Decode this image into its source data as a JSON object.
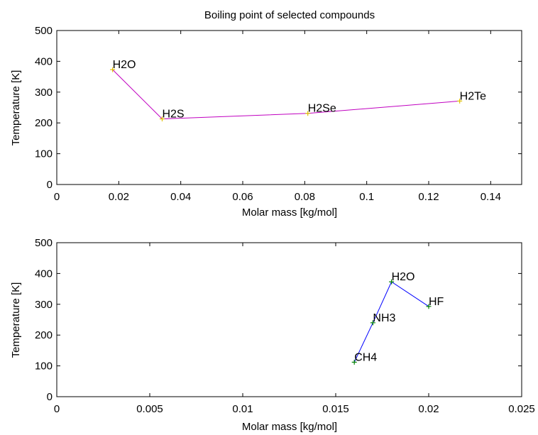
{
  "figure_title": "Boiling point of selected compounds",
  "chart_data": [
    {
      "type": "line",
      "title": "Boiling point of selected compounds",
      "xlabel": "Molar mass [kg/mol]",
      "ylabel": "Temperature [K]",
      "xlim": [
        0,
        0.15
      ],
      "ylim": [
        0,
        500
      ],
      "xticks": [
        0,
        0.02,
        0.04,
        0.06,
        0.08,
        0.1,
        0.12,
        0.14
      ],
      "xtick_labels": [
        "0",
        "0.02",
        "0.04",
        "0.06",
        "0.08",
        "0.1",
        "0.12",
        "0.14"
      ],
      "yticks": [
        0,
        100,
        200,
        300,
        400,
        500
      ],
      "ytick_labels": [
        "0",
        "100",
        "200",
        "300",
        "400",
        "500"
      ],
      "grid": false,
      "line_color": "#c000c0",
      "marker": "+",
      "marker_color": "#e0c000",
      "points": [
        {
          "label": "H2O",
          "x": 0.018,
          "y": 373
        },
        {
          "label": "H2S",
          "x": 0.034,
          "y": 213
        },
        {
          "label": "H2Se",
          "x": 0.081,
          "y": 231
        },
        {
          "label": "H2Te",
          "x": 0.13,
          "y": 271
        }
      ]
    },
    {
      "type": "line",
      "title": "",
      "xlabel": "Molar mass [kg/mol]",
      "ylabel": "Temperature [K]",
      "xlim": [
        0,
        0.025
      ],
      "ylim": [
        0,
        500
      ],
      "xticks": [
        0,
        0.005,
        0.01,
        0.015,
        0.02,
        0.025
      ],
      "xtick_labels": [
        "0",
        "0.005",
        "0.01",
        "0.015",
        "0.02",
        "0.025"
      ],
      "yticks": [
        0,
        100,
        200,
        300,
        400,
        500
      ],
      "ytick_labels": [
        "0",
        "100",
        "200",
        "300",
        "400",
        "500"
      ],
      "grid": false,
      "line_color": "#0000ff",
      "marker": "+",
      "marker_color": "#008000",
      "points": [
        {
          "label": "CH4",
          "x": 0.016,
          "y": 112
        },
        {
          "label": "NH3",
          "x": 0.017,
          "y": 240
        },
        {
          "label": "H2O",
          "x": 0.018,
          "y": 373
        },
        {
          "label": "HF",
          "x": 0.02,
          "y": 293
        }
      ]
    }
  ]
}
